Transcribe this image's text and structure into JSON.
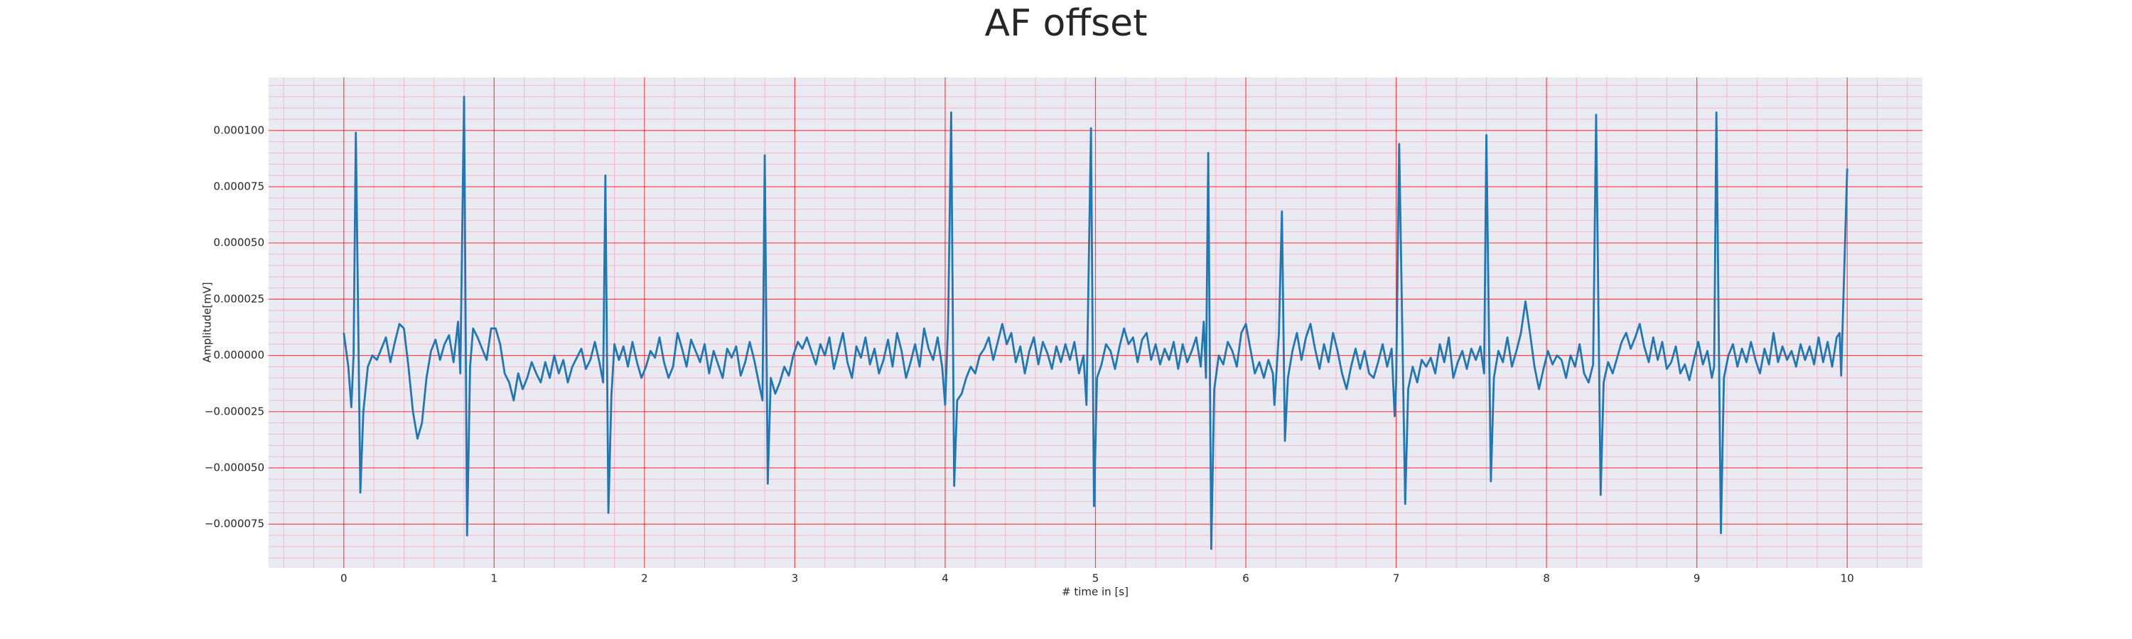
{
  "chart_data": {
    "type": "line",
    "title": "AF offset",
    "xlabel": "# time in [s]",
    "ylabel": "Amplitude[mV]",
    "xlim": [
      -0.5,
      10.5
    ],
    "ylim": [
      -9.45e-05,
      0.0001236
    ],
    "xticks": [
      0,
      1,
      2,
      3,
      4,
      5,
      6,
      7,
      8,
      9,
      10
    ],
    "yticks": [
      {
        "value": -7.5e-05,
        "label": "−0.000075"
      },
      {
        "value": -5e-05,
        "label": "−0.000050"
      },
      {
        "value": -2.5e-05,
        "label": "−0.000025"
      },
      {
        "value": 0,
        "label": "0.000000"
      },
      {
        "value": 2.5e-05,
        "label": "0.000025"
      },
      {
        "value": 5e-05,
        "label": "0.000050"
      },
      {
        "value": 7.5e-05,
        "label": "0.000075"
      },
      {
        "value": 0.0001,
        "label": "0.000100"
      }
    ],
    "minor_xticks": [
      -0.4,
      -0.2,
      0.2,
      0.4,
      0.6,
      0.8,
      1.2,
      1.4,
      1.6,
      1.8,
      2.2,
      2.4,
      2.6,
      2.8,
      3.2,
      3.4,
      3.6,
      3.8,
      4.2,
      4.4,
      4.6,
      4.8,
      5.2,
      5.4,
      5.6,
      5.8,
      6.2,
      6.4,
      6.6,
      6.8,
      7.2,
      7.4,
      7.6,
      7.8,
      8.2,
      8.4,
      8.6,
      8.8,
      9.2,
      9.4,
      9.6,
      9.8,
      10.2,
      10.4
    ],
    "minor_yticks": [
      -9e-05,
      -8.5e-05,
      -8e-05,
      -7e-05,
      -6.5e-05,
      -6e-05,
      -5.5e-05,
      -4.5e-05,
      -4e-05,
      -3.5e-05,
      -3e-05,
      -2e-05,
      -1.5e-05,
      -1e-05,
      -5e-06,
      5e-06,
      1e-05,
      1.5e-05,
      2e-05,
      3e-05,
      3.5e-05,
      4e-05,
      4.5e-05,
      5.5e-05,
      6e-05,
      6.5e-05,
      7e-05,
      8e-05,
      8.5e-05,
      9e-05,
      9.5e-05,
      0.000105,
      0.00011,
      0.000115,
      0.00012
    ],
    "grid": true,
    "grid_color": "#ff0000",
    "minor_grid_color": "#f4b8c8",
    "background": "#eaeaf2",
    "series": [
      {
        "name": "AF offset",
        "color": "#1f77b4",
        "x": [
          0.0,
          0.03,
          0.05,
          0.065,
          0.08,
          0.095,
          0.11,
          0.13,
          0.16,
          0.19,
          0.22,
          0.25,
          0.28,
          0.31,
          0.34,
          0.37,
          0.4,
          0.43,
          0.46,
          0.49,
          0.52,
          0.55,
          0.58,
          0.61,
          0.64,
          0.67,
          0.7,
          0.73,
          0.76,
          0.775,
          0.8,
          0.82,
          0.84,
          0.86,
          0.89,
          0.92,
          0.95,
          0.98,
          1.01,
          1.04,
          1.07,
          1.1,
          1.13,
          1.16,
          1.19,
          1.22,
          1.25,
          1.28,
          1.31,
          1.34,
          1.37,
          1.4,
          1.43,
          1.46,
          1.49,
          1.52,
          1.55,
          1.58,
          1.61,
          1.64,
          1.67,
          1.7,
          1.725,
          1.74,
          1.76,
          1.78,
          1.8,
          1.83,
          1.86,
          1.89,
          1.92,
          1.95,
          1.98,
          2.01,
          2.04,
          2.07,
          2.1,
          2.13,
          2.16,
          2.19,
          2.22,
          2.25,
          2.28,
          2.31,
          2.34,
          2.37,
          2.4,
          2.43,
          2.46,
          2.49,
          2.52,
          2.55,
          2.58,
          2.61,
          2.64,
          2.67,
          2.7,
          2.73,
          2.76,
          2.785,
          2.8,
          2.82,
          2.84,
          2.87,
          2.9,
          2.93,
          2.96,
          2.99,
          3.02,
          3.05,
          3.08,
          3.11,
          3.14,
          3.17,
          3.2,
          3.23,
          3.26,
          3.29,
          3.32,
          3.35,
          3.38,
          3.41,
          3.44,
          3.47,
          3.5,
          3.53,
          3.56,
          3.59,
          3.62,
          3.65,
          3.68,
          3.71,
          3.74,
          3.77,
          3.8,
          3.83,
          3.86,
          3.89,
          3.92,
          3.95,
          3.98,
          4.0,
          4.02,
          4.04,
          4.06,
          4.08,
          4.11,
          4.14,
          4.17,
          4.2,
          4.23,
          4.26,
          4.29,
          4.32,
          4.35,
          4.38,
          4.41,
          4.44,
          4.47,
          4.5,
          4.53,
          4.56,
          4.59,
          4.62,
          4.65,
          4.68,
          4.71,
          4.74,
          4.77,
          4.8,
          4.83,
          4.86,
          4.89,
          4.92,
          4.94,
          4.97,
          4.99,
          5.01,
          5.04,
          5.07,
          5.1,
          5.13,
          5.16,
          5.19,
          5.22,
          5.25,
          5.28,
          5.31,
          5.34,
          5.37,
          5.4,
          5.43,
          5.46,
          5.49,
          5.52,
          5.55,
          5.58,
          5.61,
          5.64,
          5.67,
          5.7,
          5.72,
          5.735,
          5.75,
          5.77,
          5.79,
          5.82,
          5.85,
          5.88,
          5.91,
          5.94,
          5.97,
          6.0,
          6.03,
          6.06,
          6.09,
          6.12,
          6.15,
          6.18,
          6.19,
          6.22,
          6.24,
          6.26,
          6.28,
          6.31,
          6.34,
          6.37,
          6.4,
          6.43,
          6.46,
          6.49,
          6.52,
          6.55,
          6.58,
          6.61,
          6.64,
          6.67,
          6.7,
          6.73,
          6.76,
          6.79,
          6.82,
          6.85,
          6.88,
          6.91,
          6.94,
          6.97,
          6.99,
          7.0,
          7.02,
          7.06,
          7.08,
          7.11,
          7.14,
          7.17,
          7.2,
          7.23,
          7.26,
          7.29,
          7.32,
          7.35,
          7.38,
          7.41,
          7.44,
          7.47,
          7.5,
          7.53,
          7.56,
          7.585,
          7.6,
          7.63,
          7.65,
          7.68,
          7.71,
          7.74,
          7.77,
          7.8,
          7.83,
          7.86,
          7.89,
          7.92,
          7.95,
          7.98,
          8.01,
          8.04,
          8.07,
          8.1,
          8.13,
          8.16,
          8.19,
          8.22,
          8.25,
          8.28,
          8.31,
          8.33,
          8.36,
          8.38,
          8.41,
          8.44,
          8.47,
          8.5,
          8.53,
          8.56,
          8.59,
          8.62,
          8.65,
          8.68,
          8.71,
          8.74,
          8.77,
          8.8,
          8.83,
          8.86,
          8.89,
          8.92,
          8.95,
          8.98,
          9.01,
          9.04,
          9.07,
          9.1,
          9.115,
          9.13,
          9.16,
          9.18,
          9.21,
          9.24,
          9.27,
          9.3,
          9.33,
          9.36,
          9.39,
          9.42,
          9.45,
          9.48,
          9.51,
          9.54,
          9.57,
          9.6,
          9.63,
          9.66,
          9.69,
          9.72,
          9.75,
          9.78,
          9.81,
          9.84,
          9.87,
          9.9,
          9.93,
          9.95,
          9.96,
          10.0
        ],
        "values": [
          1e-05,
          -5e-06,
          -2.3e-05,
          0,
          9.9e-05,
          2e-05,
          -6.1e-05,
          -2.5e-05,
          -5e-06,
          0,
          -2e-06,
          3e-06,
          8e-06,
          -3e-06,
          6e-06,
          1.4e-05,
          1.2e-05,
          -5e-06,
          -2.5e-05,
          -3.7e-05,
          -3e-05,
          -1e-05,
          2e-06,
          7e-06,
          -2e-06,
          5e-06,
          9e-06,
          -3e-06,
          1.5e-05,
          -8e-06,
          0.000115,
          -8e-05,
          -5e-06,
          1.2e-05,
          8e-06,
          3e-06,
          -2e-06,
          1.2e-05,
          1.2e-05,
          5e-06,
          -8e-06,
          -1.2e-05,
          -2e-05,
          -8e-06,
          -1.5e-05,
          -1e-05,
          -3e-06,
          -8e-06,
          -1.2e-05,
          -3e-06,
          -1e-05,
          0,
          -8e-06,
          -2e-06,
          -1.2e-05,
          -5e-06,
          -1e-06,
          3e-06,
          -6e-06,
          -2e-06,
          6e-06,
          -3e-06,
          -1.2e-05,
          8e-05,
          -7e-05,
          -1.8e-05,
          5e-06,
          -2e-06,
          4e-06,
          -5e-06,
          6e-06,
          -3e-06,
          -1e-05,
          -5e-06,
          2e-06,
          -1e-06,
          8e-06,
          -3e-06,
          -1e-05,
          -5e-06,
          1e-05,
          3e-06,
          -5e-06,
          7e-06,
          2e-06,
          -3e-06,
          5e-06,
          -8e-06,
          2e-06,
          -4e-06,
          -1e-05,
          3e-06,
          -1e-06,
          4e-06,
          -9e-06,
          -3e-06,
          6e-06,
          -2e-06,
          -1.2e-05,
          -2e-05,
          8.9e-05,
          -5.7e-05,
          -1e-05,
          -1.7e-05,
          -1.2e-05,
          -5e-06,
          -9e-06,
          0,
          6e-06,
          3e-06,
          8e-06,
          2e-06,
          -4e-06,
          5e-06,
          0,
          8e-06,
          -6e-06,
          2e-06,
          1e-05,
          -3e-06,
          -1e-05,
          4e-06,
          -1e-06,
          8e-06,
          -4e-06,
          3e-06,
          -8e-06,
          -2e-06,
          7e-06,
          -5e-06,
          1e-05,
          2e-06,
          -1e-05,
          -3e-06,
          5e-06,
          -5e-06,
          1.2e-05,
          3e-06,
          -2e-06,
          8e-06,
          -5e-06,
          -2.2e-05,
          1.5e-05,
          0.000108,
          -5.8e-05,
          -2e-05,
          -1.7e-05,
          -1e-05,
          -5e-06,
          -8e-06,
          0,
          3e-06,
          8e-06,
          -2e-06,
          6e-06,
          1.4e-05,
          5e-06,
          1e-05,
          -3e-06,
          4e-06,
          -8e-06,
          2e-06,
          8e-06,
          -4e-06,
          6e-06,
          1e-06,
          -6e-06,
          4e-06,
          -3e-06,
          5e-06,
          -2e-06,
          6e-06,
          -8e-06,
          0,
          -2.2e-05,
          0.000101,
          -6.7e-05,
          -1e-05,
          -4e-06,
          5e-06,
          2e-06,
          -6e-06,
          4e-06,
          1.2e-05,
          5e-06,
          8e-06,
          -3e-06,
          7e-06,
          1e-05,
          -2e-06,
          5e-06,
          -4e-06,
          3e-06,
          -2e-06,
          6e-06,
          -6e-06,
          5e-06,
          -3e-06,
          2e-06,
          8e-06,
          -5e-06,
          1.5e-05,
          -1e-05,
          9e-05,
          -8.6e-05,
          -1.5e-05,
          0,
          -4e-06,
          6e-06,
          2e-06,
          -5e-06,
          1e-05,
          1.4e-05,
          3e-06,
          -8e-06,
          -3e-06,
          -1e-05,
          -2e-06,
          -8e-06,
          -2.2e-05,
          1e-05,
          6.4e-05,
          -3.8e-05,
          -1e-05,
          2e-06,
          1e-05,
          -2e-06,
          8e-06,
          1.4e-05,
          3e-06,
          -6e-06,
          5e-06,
          -3e-06,
          1e-05,
          2e-06,
          -8e-06,
          -1.5e-05,
          -5e-06,
          3e-06,
          -6e-06,
          2e-06,
          -8e-06,
          -1e-05,
          -3e-06,
          5e-06,
          -5e-06,
          3e-06,
          -2.7e-05,
          -1.2e-05,
          9.4e-05,
          -6.6e-05,
          -1.5e-05,
          -5e-06,
          -1.2e-05,
          -2e-06,
          -5e-06,
          -1e-06,
          -8e-06,
          5e-06,
          -3e-06,
          8e-06,
          -1e-05,
          -3e-06,
          2e-06,
          -6e-06,
          3e-06,
          -2e-06,
          4e-06,
          -8e-06,
          9.8e-05,
          -5.6e-05,
          -1e-05,
          2e-06,
          -3e-06,
          8e-06,
          -5e-06,
          2e-06,
          1e-05,
          2.4e-05,
          1e-05,
          -5e-06,
          -1.5e-05,
          -6e-06,
          2e-06,
          -4e-06,
          0,
          -2e-06,
          -1e-05,
          0,
          -5e-06,
          5e-06,
          -8e-06,
          -1.2e-05,
          -4e-06,
          0.000107,
          -6.2e-05,
          -1.2e-05,
          -3e-06,
          -8e-06,
          -1e-06,
          6e-06,
          1e-05,
          3e-06,
          8e-06,
          1.4e-05,
          4e-06,
          -3e-06,
          8e-06,
          -2e-06,
          6e-06,
          -6e-06,
          -3e-06,
          4e-06,
          -8e-06,
          -4e-06,
          -1.1e-05,
          -2e-06,
          6e-06,
          -4e-06,
          2e-06,
          -1e-05,
          -5e-06,
          0.000108,
          -7.9e-05,
          -1e-05,
          0,
          5e-06,
          -5e-06,
          3e-06,
          -3e-06,
          6e-06,
          -2e-06,
          -8e-06,
          3e-06,
          -4e-06,
          1e-05,
          -3e-06,
          4e-06,
          -2e-06,
          2e-06,
          -5e-06,
          5e-06,
          -2e-06,
          4e-06,
          -4e-06,
          8e-06,
          -3e-06,
          6e-06,
          -5e-06,
          8e-06,
          1e-05,
          -9e-06,
          8.3e-05
        ]
      }
    ]
  }
}
